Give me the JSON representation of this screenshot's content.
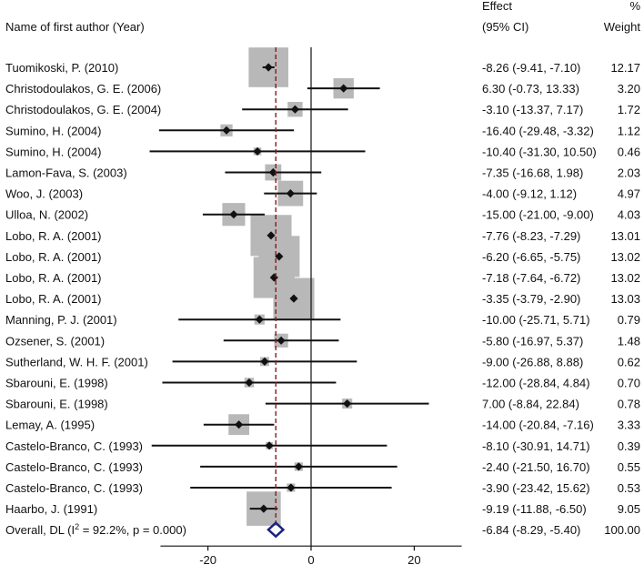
{
  "chart_data": {
    "type": "forest",
    "headers": {
      "study": "Name of first author (Year)",
      "effect_line1": "Effect",
      "effect_line2": "(95% CI)",
      "weight_line1": "%",
      "weight_line2": "Weight"
    },
    "studies": [
      {
        "author": "Tuomikoski, P. (2010)",
        "effect": -8.26,
        "lower": -9.41,
        "upper": -7.1,
        "ci_text": "-8.26 (-9.41, -7.10)",
        "weight": 12.17,
        "weight_text": "12.17"
      },
      {
        "author": "Christodoulakos, G. E. (2006)",
        "effect": 6.3,
        "lower": -0.73,
        "upper": 13.33,
        "ci_text": "6.30 (-0.73, 13.33)",
        "weight": 3.2,
        "weight_text": "3.20"
      },
      {
        "author": "Christodoulakos, G. E. (2004)",
        "effect": -3.1,
        "lower": -13.37,
        "upper": 7.17,
        "ci_text": "-3.10 (-13.37, 7.17)",
        "weight": 1.72,
        "weight_text": "1.72"
      },
      {
        "author": "Sumino, H. (2004)",
        "effect": -16.4,
        "lower": -29.48,
        "upper": -3.32,
        "ci_text": "-16.40 (-29.48, -3.32)",
        "weight": 1.12,
        "weight_text": "1.12"
      },
      {
        "author": "Sumino, H. (2004)",
        "effect": -10.4,
        "lower": -31.3,
        "upper": 10.5,
        "ci_text": "-10.40 (-31.30, 10.50)",
        "weight": 0.46,
        "weight_text": "0.46"
      },
      {
        "author": "Lamon-Fava, S. (2003)",
        "effect": -7.35,
        "lower": -16.68,
        "upper": 1.98,
        "ci_text": "-7.35 (-16.68, 1.98)",
        "weight": 2.03,
        "weight_text": "2.03"
      },
      {
        "author": "Woo, J. (2003)",
        "effect": -4.0,
        "lower": -9.12,
        "upper": 1.12,
        "ci_text": "-4.00 (-9.12, 1.12)",
        "weight": 4.97,
        "weight_text": "4.97"
      },
      {
        "author": "Ulloa, N. (2002)",
        "effect": -15.0,
        "lower": -21.0,
        "upper": -9.0,
        "ci_text": "-15.00 (-21.00, -9.00)",
        "weight": 4.03,
        "weight_text": "4.03"
      },
      {
        "author": "Lobo, R. A. (2001)",
        "effect": -7.76,
        "lower": -8.23,
        "upper": -7.29,
        "ci_text": "-7.76 (-8.23, -7.29)",
        "weight": 13.01,
        "weight_text": "13.01"
      },
      {
        "author": "Lobo, R. A. (2001)",
        "effect": -6.2,
        "lower": -6.65,
        "upper": -5.75,
        "ci_text": "-6.20 (-6.65, -5.75)",
        "weight": 13.02,
        "weight_text": "13.02"
      },
      {
        "author": "Lobo, R. A. (2001)",
        "effect": -7.18,
        "lower": -7.64,
        "upper": -6.72,
        "ci_text": "-7.18 (-7.64, -6.72)",
        "weight": 13.02,
        "weight_text": "13.02"
      },
      {
        "author": "Lobo, R. A. (2001)",
        "effect": -3.35,
        "lower": -3.79,
        "upper": -2.9,
        "ci_text": "-3.35 (-3.79, -2.90)",
        "weight": 13.03,
        "weight_text": "13.03"
      },
      {
        "author": "Manning, P. J. (2001)",
        "effect": -10.0,
        "lower": -25.71,
        "upper": 5.71,
        "ci_text": "-10.00 (-25.71, 5.71)",
        "weight": 0.79,
        "weight_text": "0.79"
      },
      {
        "author": "Ozsener, S. (2001)",
        "effect": -5.8,
        "lower": -16.97,
        "upper": 5.37,
        "ci_text": "-5.80 (-16.97, 5.37)",
        "weight": 1.48,
        "weight_text": "1.48"
      },
      {
        "author": "Sutherland, W. H. F. (2001)",
        "effect": -9.0,
        "lower": -26.88,
        "upper": 8.88,
        "ci_text": "-9.00 (-26.88, 8.88)",
        "weight": 0.62,
        "weight_text": "0.62"
      },
      {
        "author": "Sbarouni, E. (1998)",
        "effect": -12.0,
        "lower": -28.84,
        "upper": 4.84,
        "ci_text": "-12.00 (-28.84, 4.84)",
        "weight": 0.7,
        "weight_text": "0.70"
      },
      {
        "author": "Sbarouni, E. (1998)",
        "effect": 7.0,
        "lower": -8.84,
        "upper": 22.84,
        "ci_text": "7.00 (-8.84, 22.84)",
        "weight": 0.78,
        "weight_text": "0.78"
      },
      {
        "author": "Lemay, A. (1995)",
        "effect": -14.0,
        "lower": -20.84,
        "upper": -7.16,
        "ci_text": "-14.00 (-20.84, -7.16)",
        "weight": 3.33,
        "weight_text": "3.33"
      },
      {
        "author": "Castelo-Branco, C. (1993)",
        "effect": -8.1,
        "lower": -30.91,
        "upper": 14.71,
        "ci_text": "-8.10 (-30.91, 14.71)",
        "weight": 0.39,
        "weight_text": "0.39"
      },
      {
        "author": "Castelo-Branco, C. (1993)",
        "effect": -2.4,
        "lower": -21.5,
        "upper": 16.7,
        "ci_text": "-2.40 (-21.50, 16.70)",
        "weight": 0.55,
        "weight_text": "0.55"
      },
      {
        "author": "Castelo-Branco, C. (1993)",
        "effect": -3.9,
        "lower": -23.42,
        "upper": 15.62,
        "ci_text": "-3.90 (-23.42, 15.62)",
        "weight": 0.53,
        "weight_text": "0.53"
      },
      {
        "author": "Haarbo, J. (1991)",
        "effect": -9.19,
        "lower": -11.88,
        "upper": -6.5,
        "ci_text": "-9.19 (-11.88, -6.50)",
        "weight": 9.05,
        "weight_text": "9.05"
      }
    ],
    "overall": {
      "label_prefix": "Overall, DL (I",
      "label_sup": "2",
      "label_suffix": " = 92.2%, p = 0.000)",
      "effect": -6.84,
      "lower": -8.29,
      "upper": -5.4,
      "ci_text": "-6.84 (-8.29, -5.40)",
      "weight_text": "100.00"
    },
    "x_ticks": [
      -20,
      0,
      20
    ],
    "x_tick_labels": [
      "-20",
      "0",
      "20"
    ],
    "null_value": 0,
    "colors": {
      "box": "#b8b8b8",
      "point": "#111111",
      "ci_line": "#111111",
      "overall_diamond": "#1a237e",
      "overall_line": "#8b1a1a",
      "axis": "#111111"
    }
  }
}
